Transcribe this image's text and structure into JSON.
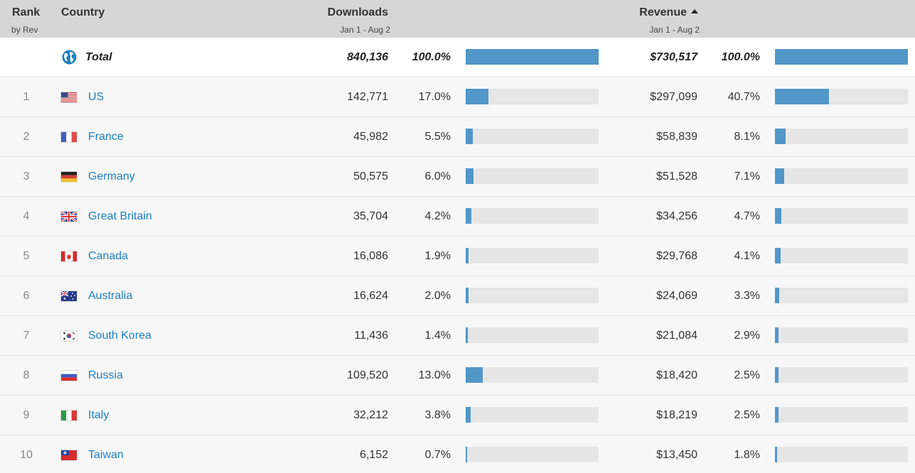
{
  "header": {
    "rank_title": "Rank",
    "rank_sub": "by Rev",
    "country_title": "Country",
    "downloads_title": "Downloads",
    "downloads_range": "Jan 1 - Aug 2",
    "revenue_title": "Revenue",
    "revenue_range": "Jan 1 - Aug 2",
    "sort_icon": "sort-ascending-triangle-icon"
  },
  "total": {
    "label": "Total",
    "icon": "globe-icon",
    "downloads": "840,136",
    "downloads_pct": "100.0%",
    "downloads_share": 1.0,
    "revenue": "$730,517",
    "revenue_pct": "100.0%",
    "revenue_share": 1.0
  },
  "rows": [
    {
      "rank": "1",
      "country": "US",
      "flag": "us-flag-icon",
      "downloads": "142,771",
      "downloads_pct": "17.0%",
      "downloads_share": 0.17,
      "revenue": "$297,099",
      "revenue_pct": "40.7%",
      "revenue_share": 0.407
    },
    {
      "rank": "2",
      "country": "France",
      "flag": "france-flag-icon",
      "downloads": "45,982",
      "downloads_pct": "5.5%",
      "downloads_share": 0.055,
      "revenue": "$58,839",
      "revenue_pct": "8.1%",
      "revenue_share": 0.081
    },
    {
      "rank": "3",
      "country": "Germany",
      "flag": "germany-flag-icon",
      "downloads": "50,575",
      "downloads_pct": "6.0%",
      "downloads_share": 0.06,
      "revenue": "$51,528",
      "revenue_pct": "7.1%",
      "revenue_share": 0.071
    },
    {
      "rank": "4",
      "country": "Great Britain",
      "flag": "great-britain-flag-icon",
      "downloads": "35,704",
      "downloads_pct": "4.2%",
      "downloads_share": 0.042,
      "revenue": "$34,256",
      "revenue_pct": "4.7%",
      "revenue_share": 0.047
    },
    {
      "rank": "5",
      "country": "Canada",
      "flag": "canada-flag-icon",
      "downloads": "16,086",
      "downloads_pct": "1.9%",
      "downloads_share": 0.019,
      "revenue": "$29,768",
      "revenue_pct": "4.1%",
      "revenue_share": 0.041
    },
    {
      "rank": "6",
      "country": "Australia",
      "flag": "australia-flag-icon",
      "downloads": "16,624",
      "downloads_pct": "2.0%",
      "downloads_share": 0.02,
      "revenue": "$24,069",
      "revenue_pct": "3.3%",
      "revenue_share": 0.033
    },
    {
      "rank": "7",
      "country": "South Korea",
      "flag": "south-korea-flag-icon",
      "downloads": "11,436",
      "downloads_pct": "1.4%",
      "downloads_share": 0.014,
      "revenue": "$21,084",
      "revenue_pct": "2.9%",
      "revenue_share": 0.029
    },
    {
      "rank": "8",
      "country": "Russia",
      "flag": "russia-flag-icon",
      "downloads": "109,520",
      "downloads_pct": "13.0%",
      "downloads_share": 0.13,
      "revenue": "$18,420",
      "revenue_pct": "2.5%",
      "revenue_share": 0.025
    },
    {
      "rank": "9",
      "country": "Italy",
      "flag": "italy-flag-icon",
      "downloads": "32,212",
      "downloads_pct": "3.8%",
      "downloads_share": 0.038,
      "revenue": "$18,219",
      "revenue_pct": "2.5%",
      "revenue_share": 0.025
    },
    {
      "rank": "10",
      "country": "Taiwan",
      "flag": "taiwan-flag-icon",
      "downloads": "6,152",
      "downloads_pct": "0.7%",
      "downloads_share": 0.007,
      "revenue": "$13,450",
      "revenue_pct": "1.8%",
      "revenue_share": 0.018
    }
  ],
  "colors": {
    "header_bg": "#d6d6d6",
    "bar_fill": "#5197c8",
    "bar_track": "#e6e6e6",
    "link": "#1f7fc0"
  }
}
